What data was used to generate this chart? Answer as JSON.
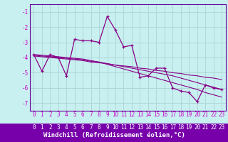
{
  "xlabel": "Windchill (Refroidissement éolien,°C)",
  "bg_color": "#c8f0f0",
  "grid_color": "#b0d8d8",
  "line_color": "#880088",
  "axis_bar_color": "#6600aa",
  "x_values": [
    0,
    1,
    2,
    3,
    4,
    5,
    6,
    7,
    8,
    9,
    10,
    11,
    12,
    13,
    14,
    15,
    16,
    17,
    18,
    19,
    20,
    21,
    22,
    23
  ],
  "y_main": [
    -3.8,
    -4.9,
    -3.8,
    -4.0,
    -5.2,
    -2.8,
    -2.9,
    -2.9,
    -3.0,
    -1.3,
    -2.2,
    -3.3,
    -3.2,
    -5.3,
    -5.2,
    -4.7,
    -4.7,
    -6.0,
    -6.2,
    -6.3,
    -6.9,
    -5.8,
    -6.0,
    -6.1
  ],
  "y_line1": [
    -3.9,
    -3.95,
    -4.0,
    -4.05,
    -4.1,
    -4.15,
    -4.2,
    -4.3,
    -4.35,
    -4.4,
    -4.5,
    -4.55,
    -4.6,
    -4.7,
    -4.75,
    -4.85,
    -4.9,
    -5.0,
    -5.05,
    -5.15,
    -5.2,
    -5.3,
    -5.35,
    -5.45
  ],
  "y_line2": [
    -3.85,
    -3.9,
    -3.95,
    -4.0,
    -4.05,
    -4.1,
    -4.15,
    -4.25,
    -4.3,
    -4.4,
    -4.5,
    -4.6,
    -4.7,
    -4.8,
    -4.9,
    -5.0,
    -5.1,
    -5.2,
    -5.35,
    -5.5,
    -5.65,
    -5.8,
    -5.95,
    -6.1
  ],
  "y_line3": [
    -3.8,
    -3.85,
    -3.9,
    -3.95,
    -4.0,
    -4.05,
    -4.1,
    -4.2,
    -4.3,
    -4.45,
    -4.6,
    -4.75,
    -4.9,
    -5.05,
    -5.2,
    -5.35,
    -5.5,
    -5.65,
    -5.8,
    -5.95,
    -6.1,
    -6.3,
    -6.45,
    -6.6
  ],
  "ylim": [
    -7.5,
    -0.5
  ],
  "xlim": [
    -0.5,
    23.5
  ],
  "yticks": [
    -7,
    -6,
    -5,
    -4,
    -3,
    -2,
    -1
  ],
  "xtick_labels": [
    "0",
    "1",
    "2",
    "3",
    "4",
    "5",
    "6",
    "7",
    "8",
    "9",
    "10",
    "11",
    "12",
    "13",
    "14",
    "15",
    "16",
    "17",
    "18",
    "19",
    "20",
    "21",
    "22",
    "23"
  ],
  "xlabel_fontsize": 6.5,
  "tick_fontsize": 5.5
}
